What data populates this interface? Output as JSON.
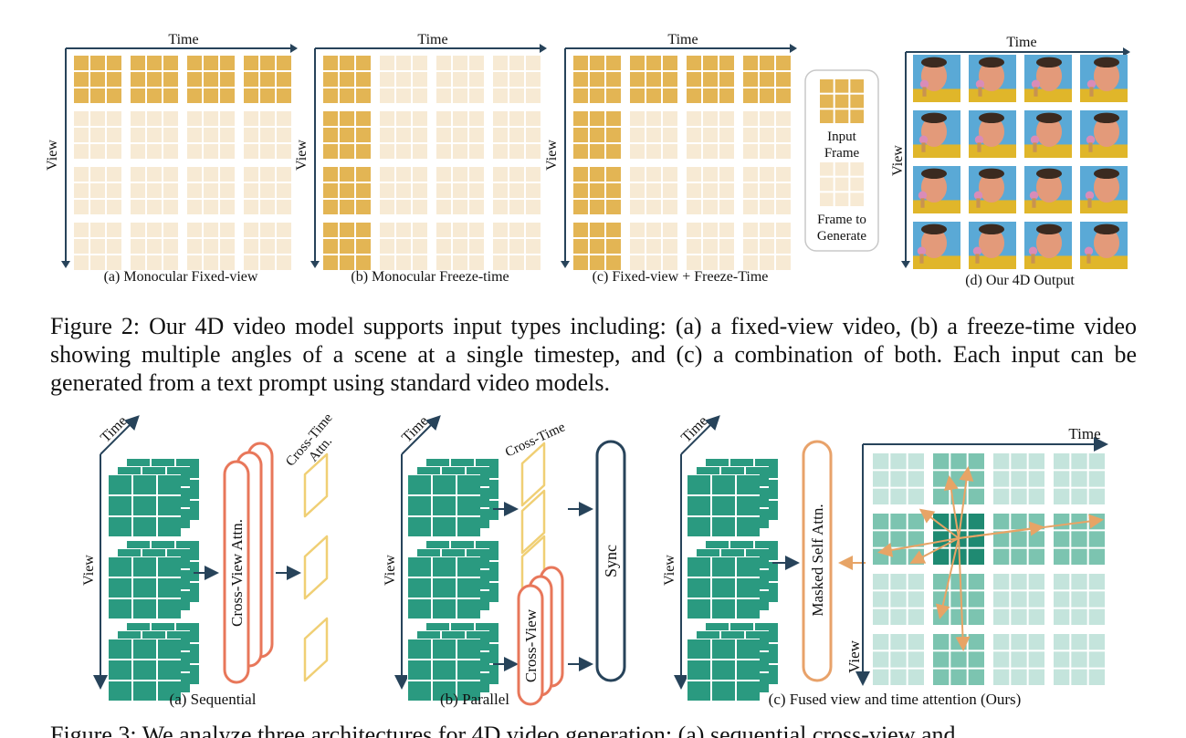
{
  "figure2": {
    "panels": [
      {
        "time_label": "Time",
        "view_label": "View",
        "caption": "(a) Monocular Fixed-view"
      },
      {
        "time_label": "Time",
        "view_label": "View",
        "caption": "(b) Monocular Freeze-time"
      },
      {
        "time_label": "Time",
        "view_label": "View",
        "caption": "(c) Fixed-view + Freeze-Time"
      },
      {
        "time_label": "Time",
        "view_label": "View",
        "caption": "(d) Our 4D Output"
      }
    ],
    "legend": {
      "input": "Input\nFrame",
      "generate": "Frame to\nGenerate"
    },
    "caption": "Figure 2: Our 4D video model supports input types including: (a) a fixed-view video, (b) a freeze-time video showing multiple angles of a scene at a single timestep, and (c) a combination of both. Each input can be generated from a text prompt using standard video models.",
    "colors": {
      "input": "#e3b554",
      "generate": "#f7ead4"
    }
  },
  "figure3": {
    "a": {
      "time_label": "Time",
      "view_label": "View",
      "cross_view": "Cross-View Attn.",
      "cross_time": "Cross-Time\nAttn.",
      "caption": "(a) Sequential"
    },
    "b": {
      "time_label": "Time",
      "view_label": "View",
      "cross_time": "Cross-Time",
      "cross_view": "Cross-View",
      "sync": "Sync",
      "caption": "(b) Parallel"
    },
    "c": {
      "time_label": "Time",
      "view_label": "View",
      "masked": "Masked Self Attn.",
      "grid_time": "Time",
      "grid_view": "View",
      "caption": "(c) Fused view and time attention (Ours)"
    },
    "caption_partial": "Figure 3: We analyze three architectures for 4D video generation: (a) sequential cross-view and",
    "colors": {
      "teal": "#2a9a80",
      "orange": "#e8775a",
      "yellow": "#f0cf74",
      "navy": "#27435a",
      "arrow": "#e7a466"
    }
  }
}
